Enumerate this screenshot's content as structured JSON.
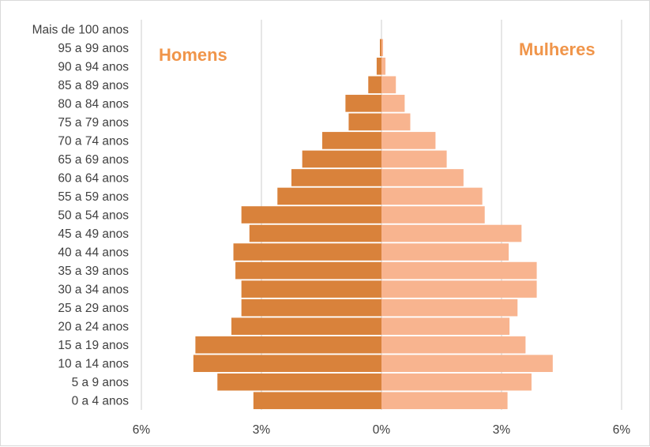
{
  "chart_data": {
    "type": "bar",
    "orientation": "horizontal",
    "layout": "population-pyramid",
    "categories": [
      "0 a 4 anos",
      "5 a 9 anos",
      "10 a 14 anos",
      "15 a 19 anos",
      "20 a 24 anos",
      "25 a 29 anos",
      "30 a 34 anos",
      "35 a 39 anos",
      "40 a 44 anos",
      "45 a 49 anos",
      "50 a 54 anos",
      "55 a 59 anos",
      "60 a 64 anos",
      "65 a 69 anos",
      "70 a 74 anos",
      "75 a 79 anos",
      "80 a 84 anos",
      "85 a 89 anos",
      "90 a 94 anos",
      "95 a 99 anos",
      "Mais de 100 anos"
    ],
    "series": [
      {
        "name": "Homens",
        "color": "#d9823b",
        "values": [
          -3.2,
          -4.1,
          -4.7,
          -4.65,
          -3.75,
          -3.5,
          -3.5,
          -3.65,
          -3.7,
          -3.3,
          -3.5,
          -2.6,
          -2.25,
          -1.98,
          -1.48,
          -0.82,
          -0.9,
          -0.33,
          -0.12,
          -0.04,
          0
        ]
      },
      {
        "name": "Mulheres",
        "color": "#f8b48f",
        "values": [
          3.15,
          3.75,
          4.28,
          3.6,
          3.2,
          3.4,
          3.88,
          3.88,
          3.18,
          3.5,
          2.58,
          2.52,
          2.05,
          1.63,
          1.35,
          0.72,
          0.58,
          0.36,
          0.1,
          0.04,
          0
        ]
      }
    ],
    "xlim": [
      -6,
      6
    ],
    "xticks": [
      -6,
      -3,
      0,
      3,
      6
    ],
    "xtick_labels": [
      "6%",
      "3%",
      "0%",
      "3%",
      "6%"
    ],
    "grid": true,
    "title": "",
    "xlabel": "",
    "ylabel": "",
    "label_left": "Homens",
    "label_right": "Mulheres",
    "label_color": "#f0954a"
  }
}
